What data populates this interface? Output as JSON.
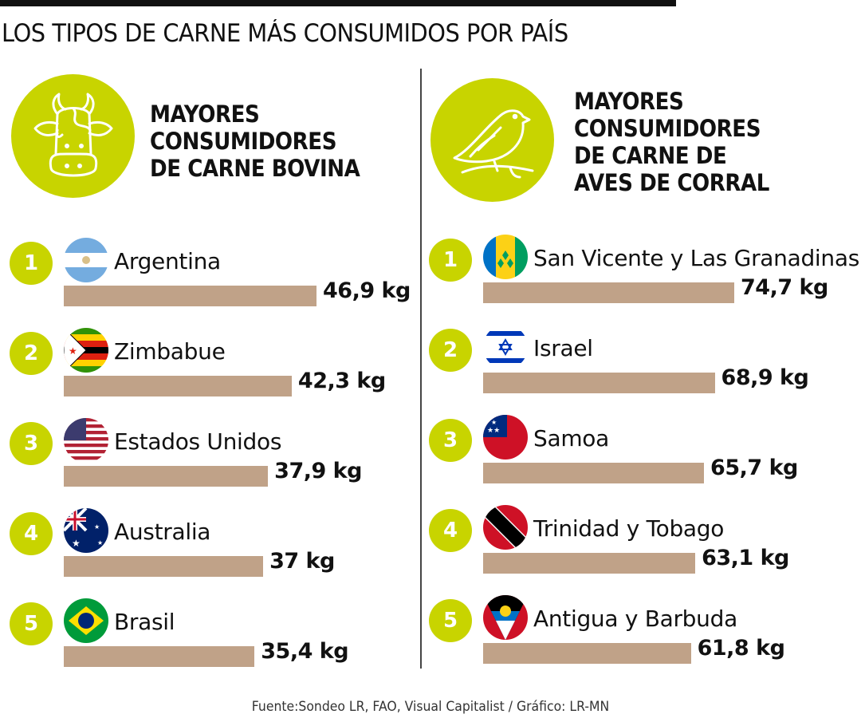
{
  "title": "LOS TIPOS DE CARNE MÁS CONSUMIDOS POR PAÍS",
  "footer": "Fuente:Sondeo LR, FAO, Visual Capitalist  / Gráfico: LR-MN",
  "colors": {
    "accent": "#c8d400",
    "bar": "#c0a288",
    "text": "#111111"
  },
  "chart_data": [
    {
      "type": "bar",
      "orientation": "horizontal",
      "title": "MAYORES\nCONSUMIDORES\nDE CARNE BOVINA",
      "icon": "cow-icon",
      "unit": "kg",
      "ranks": [
        "1",
        "2",
        "3",
        "4",
        "5"
      ],
      "categories": [
        "Argentina",
        "Zimbabue",
        "Estados Unidos",
        "Australia",
        "Brasil"
      ],
      "flags": [
        "argentina-flag-icon",
        "zimbabwe-flag-icon",
        "usa-flag-icon",
        "australia-flag-icon",
        "brazil-flag-icon"
      ],
      "values": [
        46.9,
        42.3,
        37.9,
        37,
        35.4
      ],
      "labels": [
        "46,9 kg",
        "42,3 kg",
        "37,9 kg",
        "37 kg",
        "35,4 kg"
      ]
    },
    {
      "type": "bar",
      "orientation": "horizontal",
      "title": "MAYORES\nCONSUMIDORES\nDE CARNE DE\nAVES DE CORRAL",
      "icon": "bird-icon",
      "unit": "kg",
      "ranks": [
        "1",
        "2",
        "3",
        "4",
        "5"
      ],
      "categories": [
        "San Vicente y Las Granadinas",
        "Israel",
        "Samoa",
        "Trinidad y Tobago",
        "Antigua y Barbuda"
      ],
      "flags": [
        "saint-vincent-flag-icon",
        "israel-flag-icon",
        "samoa-flag-icon",
        "trinidad-flag-icon",
        "antigua-flag-icon"
      ],
      "values": [
        74.7,
        68.9,
        65.7,
        63.1,
        61.8
      ],
      "labels": [
        "74,7 kg",
        "68,9 kg",
        "65,7 kg",
        "63,1 kg",
        "61,8 kg"
      ]
    }
  ]
}
